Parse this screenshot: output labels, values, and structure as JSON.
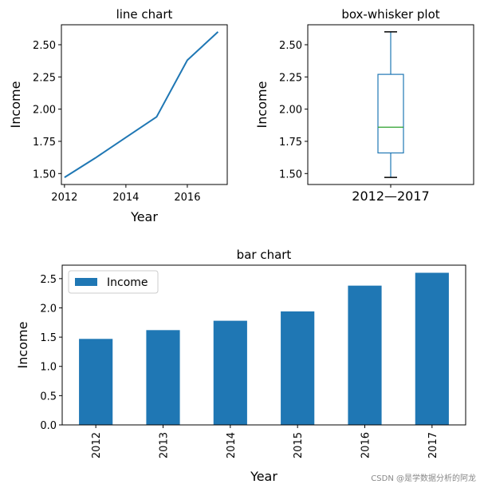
{
  "chart_data": [
    {
      "type": "line",
      "title": "line chart",
      "xlabel": "Year",
      "ylabel": "Income",
      "x": [
        2012,
        2013,
        2014,
        2015,
        2016,
        2017
      ],
      "series": [
        {
          "name": "Income",
          "values": [
            1.47,
            1.62,
            1.78,
            1.94,
            2.38,
            2.6
          ],
          "color": "#1f77b4"
        }
      ],
      "xlim": [
        2011.9,
        2017.3
      ],
      "ylim": [
        1.415,
        2.655
      ],
      "xticks": [
        2012,
        2014,
        2016
      ],
      "xtick_labels": [
        "2012",
        "2014",
        "2016"
      ],
      "yticks": [
        1.5,
        1.75,
        2.0,
        2.25,
        2.5
      ],
      "ytick_labels": [
        "1.50",
        "1.75",
        "2.00",
        "2.25",
        "2.50"
      ]
    },
    {
      "type": "box",
      "title": "box-whisker plot",
      "ylabel": "Income",
      "category": "2012—2017",
      "stats": {
        "min": 1.47,
        "q1": 1.66,
        "median": 1.86,
        "q3": 2.27,
        "max": 2.6
      },
      "ylim": [
        1.415,
        2.655
      ],
      "yticks": [
        1.5,
        1.75,
        2.0,
        2.25,
        2.5
      ],
      "ytick_labels": [
        "1.50",
        "1.75",
        "2.00",
        "2.25",
        "2.50"
      ],
      "box_color": "#1f77b4",
      "median_color": "#2ca02c"
    },
    {
      "type": "bar",
      "title": "bar chart",
      "xlabel": "Year",
      "ylabel": "Income",
      "categories": [
        "2012",
        "2013",
        "2014",
        "2015",
        "2016",
        "2017"
      ],
      "series": [
        {
          "name": "Income",
          "values": [
            1.47,
            1.62,
            1.78,
            1.94,
            2.38,
            2.6
          ],
          "color": "#1f77b4"
        }
      ],
      "legend": "top-left",
      "ylim": [
        0,
        2.73
      ],
      "yticks": [
        0,
        0.5,
        1.0,
        1.5,
        2.0,
        2.5
      ],
      "ytick_labels": [
        "0.0",
        "0.5",
        "1.0",
        "1.5",
        "2.0",
        "2.5"
      ]
    }
  ],
  "watermark": "CSDN @是学数据分析的阿龙"
}
